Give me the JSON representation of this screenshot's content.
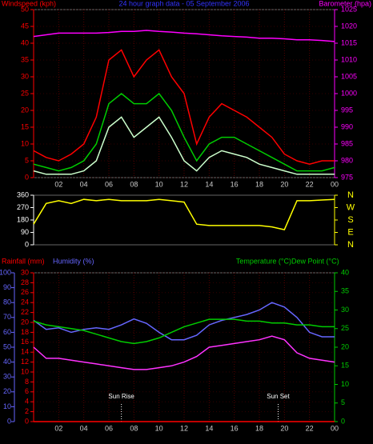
{
  "chart_data": [
    {
      "type": "line",
      "title": "24 hour graph data - 05 September 2006",
      "ylabel": "Windspeed (kph)",
      "y2label": "Barometer (hpa)",
      "ycolor": "#ff0000",
      "y2color": "#ff00ff",
      "grid": true,
      "x": [
        0,
        1,
        2,
        3,
        4,
        5,
        6,
        7,
        8,
        9,
        10,
        11,
        12,
        13,
        14,
        15,
        16,
        17,
        18,
        19,
        20,
        21,
        22,
        23,
        24
      ],
      "xlim": [
        0,
        24
      ],
      "xticks": [
        {
          "value": 2,
          "label": "02"
        },
        {
          "value": 4,
          "label": "04"
        },
        {
          "value": 6,
          "label": "06"
        },
        {
          "value": 8,
          "label": "08"
        },
        10,
        12,
        14,
        16,
        18,
        20,
        22,
        {
          "value": 24,
          "label": "00"
        }
      ],
      "ylim": [
        0,
        50
      ],
      "yticks": [
        0,
        5,
        10,
        15,
        20,
        25,
        30,
        35,
        40,
        45,
        50
      ],
      "y2lim": [
        975,
        1025
      ],
      "y2ticks": [
        975,
        980,
        985,
        990,
        995,
        1000,
        1005,
        1010,
        1015,
        1020,
        1025
      ],
      "series": [
        {
          "color": "#ff0000",
          "values": [
            8,
            6,
            5,
            7,
            10,
            18,
            35,
            38,
            30,
            35,
            38,
            30,
            25,
            10,
            18,
            22,
            20,
            18,
            15,
            12,
            7,
            5,
            4,
            5,
            5
          ]
        },
        {
          "color": "#00cc00",
          "values": [
            4,
            3,
            2,
            3,
            5,
            10,
            22,
            25,
            22,
            22,
            25,
            20,
            12,
            5,
            10,
            12,
            12,
            10,
            8,
            6,
            4,
            2,
            2,
            2,
            3
          ]
        },
        {
          "color": "#ccffcc",
          "values": [
            2,
            1,
            1,
            1,
            2,
            5,
            15,
            18,
            12,
            15,
            18,
            12,
            5,
            2,
            6,
            8,
            7,
            6,
            4,
            3,
            2,
            1,
            1,
            1,
            1
          ]
        },
        {
          "color": "#ff00ff",
          "axis": "y2",
          "values": [
            1017,
            1017.5,
            1018,
            1018,
            1018,
            1018,
            1018.2,
            1018.5,
            1018.5,
            1018.8,
            1018.5,
            1018.3,
            1018,
            1017.8,
            1017.5,
            1017.2,
            1017,
            1016.8,
            1016.5,
            1016.5,
            1016.3,
            1016,
            1016,
            1015.8,
            1015.5
          ]
        }
      ]
    },
    {
      "type": "line",
      "ycolor": "#ffffff",
      "y2color": "#ffff00",
      "x": [
        0,
        1,
        2,
        3,
        4,
        5,
        6,
        7,
        8,
        9,
        10,
        11,
        12,
        13,
        14,
        15,
        16,
        17,
        18,
        19,
        20,
        21,
        22,
        23,
        24
      ],
      "xlim": [
        0,
        24
      ],
      "ylim": [
        0,
        360
      ],
      "yticks": [
        0,
        90,
        180,
        270,
        360
      ],
      "y2lim": [
        0,
        360
      ],
      "y2ticks": [
        {
          "value": 360,
          "label": "N"
        },
        {
          "value": 270,
          "label": "W"
        },
        {
          "value": 180,
          "label": "S"
        },
        {
          "value": 90,
          "label": "E"
        },
        {
          "value": 0,
          "label": "N"
        }
      ],
      "series": [
        {
          "color": "#ffff00",
          "values": [
            150,
            300,
            320,
            300,
            330,
            320,
            330,
            320,
            320,
            320,
            330,
            320,
            310,
            150,
            140,
            140,
            140,
            140,
            140,
            130,
            110,
            320,
            320,
            325,
            330
          ]
        }
      ]
    },
    {
      "type": "line",
      "ylabel": "Rainfall (mm)",
      "y3label": "Humidity (%)",
      "y2label": "Temperature (°C)",
      "y2label2": "Dew Point (°C)",
      "ycolor": "#ff0000",
      "y3color": "#6666ff",
      "y2color": "#00cc00",
      "grid": true,
      "x": [
        0,
        1,
        2,
        3,
        4,
        5,
        6,
        7,
        8,
        9,
        10,
        11,
        12,
        13,
        14,
        15,
        16,
        17,
        18,
        19,
        20,
        21,
        22,
        23,
        24
      ],
      "xlim": [
        0,
        24
      ],
      "xticks": [
        {
          "value": 2,
          "label": "02"
        },
        {
          "value": 4,
          "label": "04"
        },
        {
          "value": 6,
          "label": "06"
        },
        {
          "value": 8,
          "label": "08"
        },
        10,
        12,
        14,
        16,
        18,
        20,
        22,
        {
          "value": 24,
          "label": "00"
        }
      ],
      "ylim": [
        0,
        30
      ],
      "yticks": [
        0,
        2,
        4,
        6,
        8,
        10,
        12,
        14,
        16,
        18,
        20,
        22,
        24,
        26,
        28,
        30
      ],
      "y3lim": [
        0,
        100
      ],
      "y3ticks": [
        0,
        10,
        20,
        30,
        40,
        50,
        60,
        70,
        80,
        90,
        100
      ],
      "y2lim": [
        0,
        40
      ],
      "y2ticks": [
        0,
        5,
        10,
        15,
        20,
        25,
        30,
        35,
        40
      ],
      "annotations": [
        {
          "text": "Sun Rise",
          "x": 7
        },
        {
          "text": "Sun Set",
          "x": 19.5
        }
      ],
      "series": [
        {
          "color": "#ff0000",
          "values": [
            0,
            0,
            0,
            0,
            0,
            0,
            0,
            0,
            0,
            0,
            0,
            0,
            0,
            0,
            0,
            0,
            0,
            0,
            0,
            0,
            0,
            0,
            0,
            0,
            0
          ]
        },
        {
          "color": "#6666ff",
          "axis": "y3",
          "values": [
            68,
            62,
            63,
            60,
            62,
            63,
            62,
            65,
            69,
            66,
            60,
            55,
            55,
            58,
            65,
            68,
            70,
            72,
            75,
            80,
            77,
            70,
            60,
            57,
            57
          ]
        },
        {
          "color": "#00cc00",
          "axis": "y2",
          "values": [
            27,
            26,
            25.5,
            25,
            24.5,
            23.5,
            22.5,
            21.5,
            21,
            21.5,
            22.5,
            24,
            25.5,
            26.5,
            27.5,
            27.5,
            27.5,
            27,
            27,
            26.5,
            26.5,
            26,
            26,
            25.5,
            25.5
          ]
        },
        {
          "color": "#ff33ff",
          "axis": "y2",
          "values": [
            20,
            17,
            17,
            16.5,
            16,
            15.5,
            15,
            14.5,
            14,
            14,
            14.5,
            15,
            16,
            17.5,
            20,
            20.5,
            21,
            21.5,
            22,
            23,
            22,
            18.5,
            17,
            16.5,
            16
          ]
        }
      ]
    }
  ]
}
